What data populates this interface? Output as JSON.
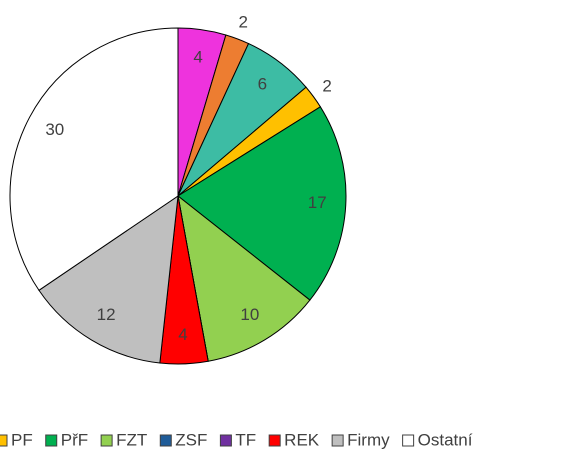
{
  "chart_data": {
    "type": "pie",
    "categories": [
      null,
      null,
      null,
      "PF",
      "PřF",
      "FZT",
      "ZSF",
      "TF",
      "REK",
      "Firmy",
      "Ostatní"
    ],
    "values": [
      4,
      2,
      6,
      2,
      17,
      10,
      0,
      0,
      4,
      12,
      30
    ],
    "colors": [
      "#ee33dd",
      "#ed7d31",
      "#3dbca4",
      "#ffc000",
      "#00b050",
      "#92d050",
      "#1f5c99",
      "#7030a0",
      "#ff0000",
      "#bfbfbf",
      "#ffffff"
    ],
    "legend": "bottom"
  }
}
